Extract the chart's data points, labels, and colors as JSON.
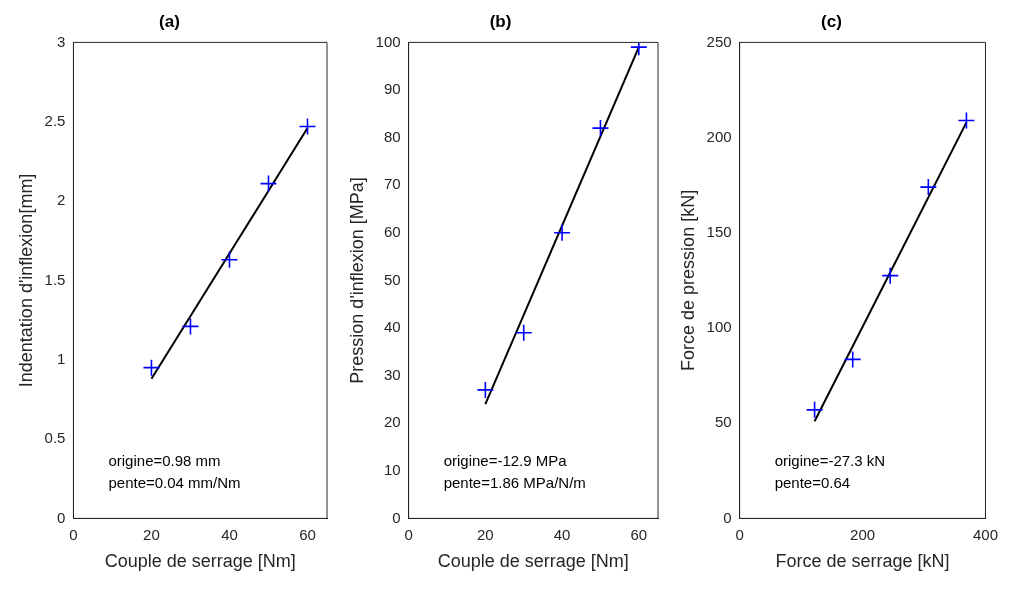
{
  "chart_data": [
    {
      "type": "scatter",
      "title": "(a)",
      "xlabel": "Couple de serrage [Nm]",
      "ylabel": "Indentation d'inflexion[mm]",
      "xlim": [
        0,
        65
      ],
      "xticks": [
        0,
        20,
        40,
        60
      ],
      "ylim": [
        0,
        3
      ],
      "yticks": [
        0,
        0.5,
        1,
        1.5,
        2,
        2.5,
        3
      ],
      "grid": false,
      "legend": false,
      "annotations": [
        "origine=0.98 mm",
        "pente=0.04 mm/Nm"
      ],
      "series": [
        {
          "type": "line",
          "color": "#000000",
          "marker": "none",
          "x": [
            20,
            60
          ],
          "values": [
            0.88,
            2.46
          ]
        },
        {
          "type": "scatter",
          "color": "#0000ff",
          "marker": "cross",
          "x": [
            20,
            30,
            40,
            50,
            60
          ],
          "values": [
            0.95,
            1.21,
            1.63,
            2.11,
            2.47
          ]
        }
      ]
    },
    {
      "type": "scatter",
      "title": "(b)",
      "xlabel": "Couple de serrage [Nm]",
      "ylabel": "Pression d'inflexion [MPa]",
      "xlim": [
        0,
        65
      ],
      "xticks": [
        0,
        20,
        40,
        60
      ],
      "ylim": [
        0,
        100
      ],
      "yticks": [
        0,
        10,
        20,
        30,
        40,
        50,
        60,
        70,
        80,
        90,
        100
      ],
      "grid": false,
      "legend": false,
      "annotations": [
        "origine=-12.9 MPa",
        "pente=1.86 MPa/N/m"
      ],
      "series": [
        {
          "type": "line",
          "color": "#000000",
          "marker": "none",
          "x": [
            20,
            60
          ],
          "values": [
            24,
            99
          ]
        },
        {
          "type": "scatter",
          "color": "#0000ff",
          "marker": "cross",
          "x": [
            20,
            30,
            40,
            50,
            60
          ],
          "values": [
            27,
            39,
            60,
            82,
            99
          ]
        }
      ]
    },
    {
      "type": "scatter",
      "title": "(c)",
      "xlabel": "Force de serrage [kN]",
      "ylabel": "Force de pression [kN]",
      "xlim": [
        0,
        400
      ],
      "xticks": [
        0,
        200,
        400
      ],
      "ylim": [
        0,
        250
      ],
      "yticks": [
        0,
        50,
        100,
        150,
        200,
        250
      ],
      "grid": false,
      "legend": false,
      "annotations": [
        "origine=-27.3 kN",
        "pente=0.64"
      ],
      "series": [
        {
          "type": "line",
          "color": "#000000",
          "marker": "none",
          "x": [
            122,
            369
          ],
          "values": [
            51,
            208
          ]
        },
        {
          "type": "scatter",
          "color": "#0000ff",
          "marker": "cross",
          "x": [
            122,
            184,
            245,
            307,
            369
          ],
          "values": [
            57,
            83.5,
            127.5,
            174,
            209
          ]
        }
      ]
    }
  ]
}
